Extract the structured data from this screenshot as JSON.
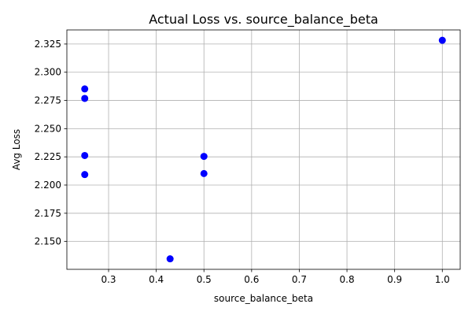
{
  "chart_data": {
    "type": "scatter",
    "title": "Actual Loss vs. source_balance_beta",
    "xlabel": "source_balance_beta",
    "ylabel": "Avg Loss",
    "xlim": [
      0.2125,
      1.0375
    ],
    "ylim": [
      2.1253,
      2.3375
    ],
    "x_ticks": [
      0.3,
      0.4,
      0.5,
      0.6,
      0.7,
      0.8,
      0.9,
      1.0
    ],
    "x_tick_labels": [
      "0.3",
      "0.4",
      "0.5",
      "0.6",
      "0.7",
      "0.8",
      "0.9",
      "1.0"
    ],
    "y_ticks": [
      2.15,
      2.175,
      2.2,
      2.225,
      2.25,
      2.275,
      2.3,
      2.325
    ],
    "y_tick_labels": [
      "2.150",
      "2.175",
      "2.200",
      "2.225",
      "2.250",
      "2.275",
      "2.300",
      "2.325"
    ],
    "grid": true,
    "marker_color": "#0000ff",
    "series": [
      {
        "points": [
          {
            "x": 0.25,
            "y": 2.2852
          },
          {
            "x": 0.25,
            "y": 2.2768
          },
          {
            "x": 0.25,
            "y": 2.2262
          },
          {
            "x": 0.25,
            "y": 2.2093
          },
          {
            "x": 0.429,
            "y": 2.1346
          },
          {
            "x": 0.5,
            "y": 2.2254
          },
          {
            "x": 0.5,
            "y": 2.2102
          },
          {
            "x": 1.0,
            "y": 2.3283
          }
        ]
      }
    ]
  }
}
